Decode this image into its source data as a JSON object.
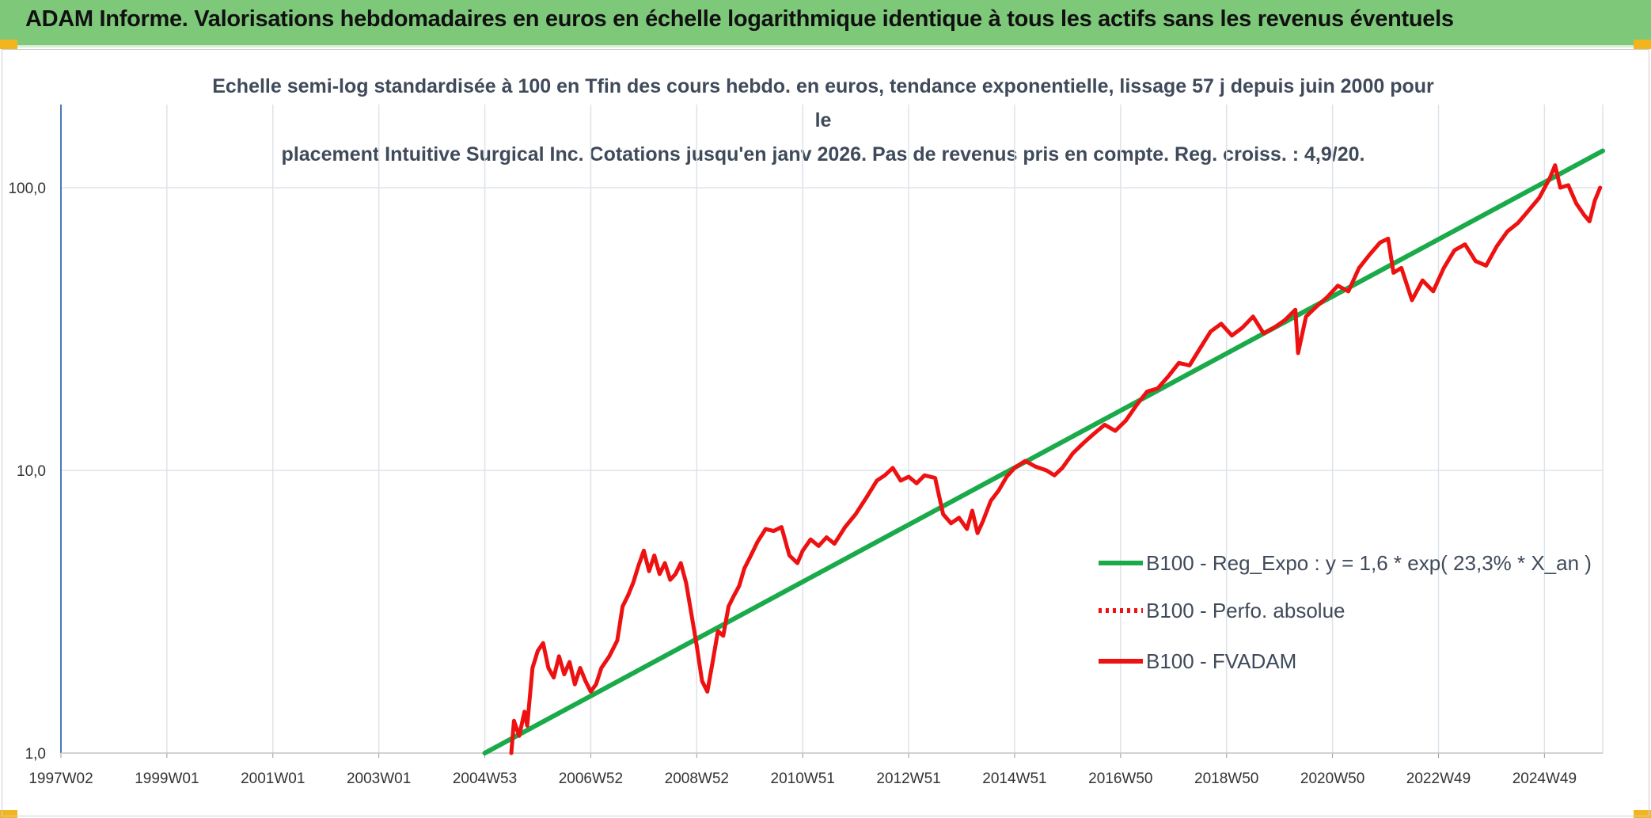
{
  "header": {
    "title": "ADAM Informe. Valorisations hebdomadaires en euros en échelle logarithmique identique à tous les actifs sans les revenus éventuels"
  },
  "colors": {
    "banner": "#7ec87a",
    "accent_corner": "#f2b51f",
    "trend_line": "#1aaa4a",
    "price_line": "#ee1111",
    "grid": "#dde3ea",
    "axis": "#4a78b8"
  },
  "chart_data": {
    "type": "line",
    "subtitle_line1": "Echelle semi-log standardisée à 100 en Tfin des cours hebdo. en euros, tendance exponentielle, lissage 57 j depuis juin 2000 pour le",
    "subtitle_line2": "placement Intuitive Surgical Inc. Cotations jusqu'en janv 2026. Pas de revenus pris en compte. Reg. croiss. : 4,9/20.",
    "y_scale": "log",
    "ylim": [
      1,
      180
    ],
    "xlim": [
      1997.0,
      2026.1
    ],
    "y_ticks": [
      {
        "value": 1,
        "label": "1,0"
      },
      {
        "value": 10,
        "label": "10,0"
      },
      {
        "value": 100,
        "label": "100,0"
      }
    ],
    "x_ticks": [
      {
        "value": 1997.0,
        "label": "1997W02"
      },
      {
        "value": 1999.0,
        "label": "1999W01"
      },
      {
        "value": 2001.0,
        "label": "2001W01"
      },
      {
        "value": 2003.0,
        "label": "2003W01"
      },
      {
        "value": 2005.0,
        "label": "2004W53"
      },
      {
        "value": 2007.0,
        "label": "2006W52"
      },
      {
        "value": 2009.0,
        "label": "2008W52"
      },
      {
        "value": 2011.0,
        "label": "2010W51"
      },
      {
        "value": 2013.0,
        "label": "2012W51"
      },
      {
        "value": 2015.0,
        "label": "2014W51"
      },
      {
        "value": 2017.0,
        "label": "2016W50"
      },
      {
        "value": 2019.0,
        "label": "2018W50"
      },
      {
        "value": 2021.0,
        "label": "2020W50"
      },
      {
        "value": 2023.0,
        "label": "2022W49"
      },
      {
        "value": 2025.0,
        "label": "2024W49"
      }
    ],
    "grid": true,
    "legend_placement": "right",
    "series": [
      {
        "name": "B100 - Reg_Expo : y = 1,6 * exp( 23,3% *  X_an )",
        "style": "solid",
        "color": "#1aaa4a",
        "points": [
          [
            2005.0,
            1.0
          ],
          [
            2026.1,
            135
          ]
        ]
      },
      {
        "name": "B100 - Perfo. absolue",
        "style": "dotted",
        "color": "#ee1111",
        "points": []
      },
      {
        "name": "B100 - FVADAM",
        "style": "solid",
        "color": "#ee1111",
        "points": [
          [
            2005.5,
            1.0
          ],
          [
            2005.55,
            1.3
          ],
          [
            2005.65,
            1.15
          ],
          [
            2005.75,
            1.4
          ],
          [
            2005.8,
            1.25
          ],
          [
            2005.9,
            2.0
          ],
          [
            2006.0,
            2.3
          ],
          [
            2006.1,
            2.45
          ],
          [
            2006.2,
            2.0
          ],
          [
            2006.3,
            1.85
          ],
          [
            2006.4,
            2.2
          ],
          [
            2006.5,
            1.9
          ],
          [
            2006.6,
            2.1
          ],
          [
            2006.7,
            1.75
          ],
          [
            2006.8,
            2.0
          ],
          [
            2006.9,
            1.8
          ],
          [
            2007.0,
            1.65
          ],
          [
            2007.1,
            1.75
          ],
          [
            2007.2,
            2.0
          ],
          [
            2007.35,
            2.2
          ],
          [
            2007.5,
            2.5
          ],
          [
            2007.6,
            3.3
          ],
          [
            2007.7,
            3.6
          ],
          [
            2007.8,
            4.0
          ],
          [
            2007.9,
            4.6
          ],
          [
            2008.0,
            5.2
          ],
          [
            2008.1,
            4.4
          ],
          [
            2008.2,
            5.0
          ],
          [
            2008.3,
            4.3
          ],
          [
            2008.4,
            4.7
          ],
          [
            2008.5,
            4.1
          ],
          [
            2008.6,
            4.3
          ],
          [
            2008.7,
            4.7
          ],
          [
            2008.8,
            4.0
          ],
          [
            2008.9,
            3.1
          ],
          [
            2009.0,
            2.4
          ],
          [
            2009.1,
            1.8
          ],
          [
            2009.2,
            1.65
          ],
          [
            2009.3,
            2.1
          ],
          [
            2009.4,
            2.7
          ],
          [
            2009.5,
            2.6
          ],
          [
            2009.6,
            3.3
          ],
          [
            2009.7,
            3.6
          ],
          [
            2009.8,
            3.9
          ],
          [
            2009.9,
            4.5
          ],
          [
            2010.0,
            4.9
          ],
          [
            2010.15,
            5.6
          ],
          [
            2010.3,
            6.2
          ],
          [
            2010.45,
            6.1
          ],
          [
            2010.6,
            6.3
          ],
          [
            2010.75,
            5.0
          ],
          [
            2010.9,
            4.7
          ],
          [
            2011.0,
            5.2
          ],
          [
            2011.15,
            5.7
          ],
          [
            2011.3,
            5.4
          ],
          [
            2011.45,
            5.8
          ],
          [
            2011.6,
            5.5
          ],
          [
            2011.8,
            6.3
          ],
          [
            2012.0,
            7.0
          ],
          [
            2012.2,
            8.0
          ],
          [
            2012.4,
            9.2
          ],
          [
            2012.55,
            9.6
          ],
          [
            2012.7,
            10.2
          ],
          [
            2012.85,
            9.2
          ],
          [
            2013.0,
            9.5
          ],
          [
            2013.15,
            9.0
          ],
          [
            2013.3,
            9.6
          ],
          [
            2013.5,
            9.4
          ],
          [
            2013.65,
            7.0
          ],
          [
            2013.8,
            6.5
          ],
          [
            2013.95,
            6.8
          ],
          [
            2014.1,
            6.2
          ],
          [
            2014.2,
            7.2
          ],
          [
            2014.3,
            6.0
          ],
          [
            2014.4,
            6.6
          ],
          [
            2014.55,
            7.8
          ],
          [
            2014.7,
            8.5
          ],
          [
            2014.85,
            9.5
          ],
          [
            2015.0,
            10.2
          ],
          [
            2015.2,
            10.8
          ],
          [
            2015.4,
            10.3
          ],
          [
            2015.6,
            10.0
          ],
          [
            2015.75,
            9.6
          ],
          [
            2015.9,
            10.2
          ],
          [
            2016.1,
            11.5
          ],
          [
            2016.3,
            12.5
          ],
          [
            2016.5,
            13.5
          ],
          [
            2016.7,
            14.5
          ],
          [
            2016.9,
            13.8
          ],
          [
            2017.1,
            15.0
          ],
          [
            2017.3,
            17.0
          ],
          [
            2017.5,
            19.0
          ],
          [
            2017.7,
            19.5
          ],
          [
            2017.9,
            21.5
          ],
          [
            2018.1,
            24.0
          ],
          [
            2018.3,
            23.5
          ],
          [
            2018.5,
            27.0
          ],
          [
            2018.7,
            31.0
          ],
          [
            2018.9,
            33.0
          ],
          [
            2019.1,
            30.0
          ],
          [
            2019.3,
            32.0
          ],
          [
            2019.5,
            35.0
          ],
          [
            2019.7,
            30.5
          ],
          [
            2019.9,
            32.0
          ],
          [
            2020.1,
            34.0
          ],
          [
            2020.3,
            37.0
          ],
          [
            2020.35,
            26.0
          ],
          [
            2020.5,
            35.0
          ],
          [
            2020.7,
            38.0
          ],
          [
            2020.9,
            41.0
          ],
          [
            2021.1,
            45.0
          ],
          [
            2021.3,
            43.0
          ],
          [
            2021.5,
            52.0
          ],
          [
            2021.7,
            58.0
          ],
          [
            2021.9,
            64.0
          ],
          [
            2022.05,
            66.0
          ],
          [
            2022.15,
            50.0
          ],
          [
            2022.3,
            52.0
          ],
          [
            2022.5,
            40.0
          ],
          [
            2022.7,
            47.0
          ],
          [
            2022.9,
            43.0
          ],
          [
            2023.1,
            52.0
          ],
          [
            2023.3,
            60.0
          ],
          [
            2023.5,
            63.0
          ],
          [
            2023.7,
            55.0
          ],
          [
            2023.9,
            53.0
          ],
          [
            2024.1,
            62.0
          ],
          [
            2024.3,
            70.0
          ],
          [
            2024.5,
            75.0
          ],
          [
            2024.7,
            83.0
          ],
          [
            2024.9,
            92.0
          ],
          [
            2025.1,
            108.0
          ],
          [
            2025.2,
            120.0
          ],
          [
            2025.3,
            100.0
          ],
          [
            2025.45,
            102.0
          ],
          [
            2025.6,
            88.0
          ],
          [
            2025.75,
            80.0
          ],
          [
            2025.85,
            76.0
          ],
          [
            2025.95,
            90.0
          ],
          [
            2026.05,
            100.0
          ]
        ]
      }
    ]
  }
}
